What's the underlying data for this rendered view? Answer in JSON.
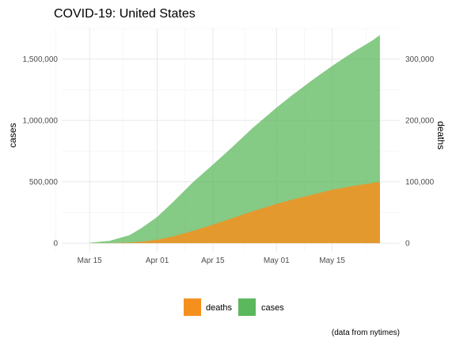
{
  "chart_data": {
    "type": "area",
    "title": "COVID-19: United States",
    "caption": "(data from nytimes)",
    "x_axis": {
      "type": "date",
      "range": [
        "2020-03-08",
        "2020-06-01"
      ],
      "ticks": [
        {
          "date": "2020-03-15",
          "label": "Mar 15"
        },
        {
          "date": "2020-04-01",
          "label": "Apr 01"
        },
        {
          "date": "2020-04-15",
          "label": "Apr 15"
        },
        {
          "date": "2020-05-01",
          "label": "May 01"
        },
        {
          "date": "2020-05-15",
          "label": "May 15"
        }
      ]
    },
    "y_left": {
      "label": "cases",
      "range": [
        -70000,
        1750000
      ],
      "ticks": [
        0,
        500000,
        1000000,
        1500000
      ],
      "tick_labels": [
        "0",
        "500,000",
        "1,000,000",
        "1,500,000"
      ]
    },
    "y_right": {
      "label": "deaths",
      "range": [
        -14000,
        350000
      ],
      "ticks": [
        0,
        100000,
        200000,
        300000
      ],
      "tick_labels": [
        "0",
        "100,000",
        "200,000",
        "300,000"
      ]
    },
    "grid": true,
    "legend": {
      "position": "bottom",
      "items": [
        {
          "label": "deaths",
          "color": "#f5901e"
        },
        {
          "label": "cases",
          "color": "#5cb85c"
        }
      ]
    },
    "series": [
      {
        "name": "cases",
        "axis": "left",
        "color": "#5cb85c",
        "opacity": 0.75,
        "points": [
          [
            "2020-03-15",
            3500
          ],
          [
            "2020-03-20",
            19000
          ],
          [
            "2020-03-25",
            65000
          ],
          [
            "2020-03-28",
            122000
          ],
          [
            "2020-04-01",
            214000
          ],
          [
            "2020-04-05",
            336000
          ],
          [
            "2020-04-10",
            497000
          ],
          [
            "2020-04-15",
            640000
          ],
          [
            "2020-04-20",
            787000
          ],
          [
            "2020-04-25",
            939000
          ],
          [
            "2020-05-01",
            1105000
          ],
          [
            "2020-05-05",
            1208000
          ],
          [
            "2020-05-10",
            1330000
          ],
          [
            "2020-05-15",
            1445000
          ],
          [
            "2020-05-20",
            1552000
          ],
          [
            "2020-05-25",
            1650000
          ],
          [
            "2020-05-27",
            1697000
          ]
        ]
      },
      {
        "name": "deaths",
        "axis": "right",
        "color": "#f5901e",
        "opacity": 0.85,
        "points": [
          [
            "2020-03-15",
            70
          ],
          [
            "2020-03-20",
            250
          ],
          [
            "2020-03-25",
            1000
          ],
          [
            "2020-03-28",
            2300
          ],
          [
            "2020-04-01",
            5500
          ],
          [
            "2020-04-05",
            11000
          ],
          [
            "2020-04-10",
            20000
          ],
          [
            "2020-04-15",
            30000
          ],
          [
            "2020-04-20",
            41000
          ],
          [
            "2020-04-25",
            52000
          ],
          [
            "2020-05-01",
            64000
          ],
          [
            "2020-05-05",
            71000
          ],
          [
            "2020-05-10",
            79000
          ],
          [
            "2020-05-15",
            87000
          ],
          [
            "2020-05-20",
            93000
          ],
          [
            "2020-05-25",
            98000
          ],
          [
            "2020-05-27",
            100000
          ]
        ]
      }
    ]
  }
}
